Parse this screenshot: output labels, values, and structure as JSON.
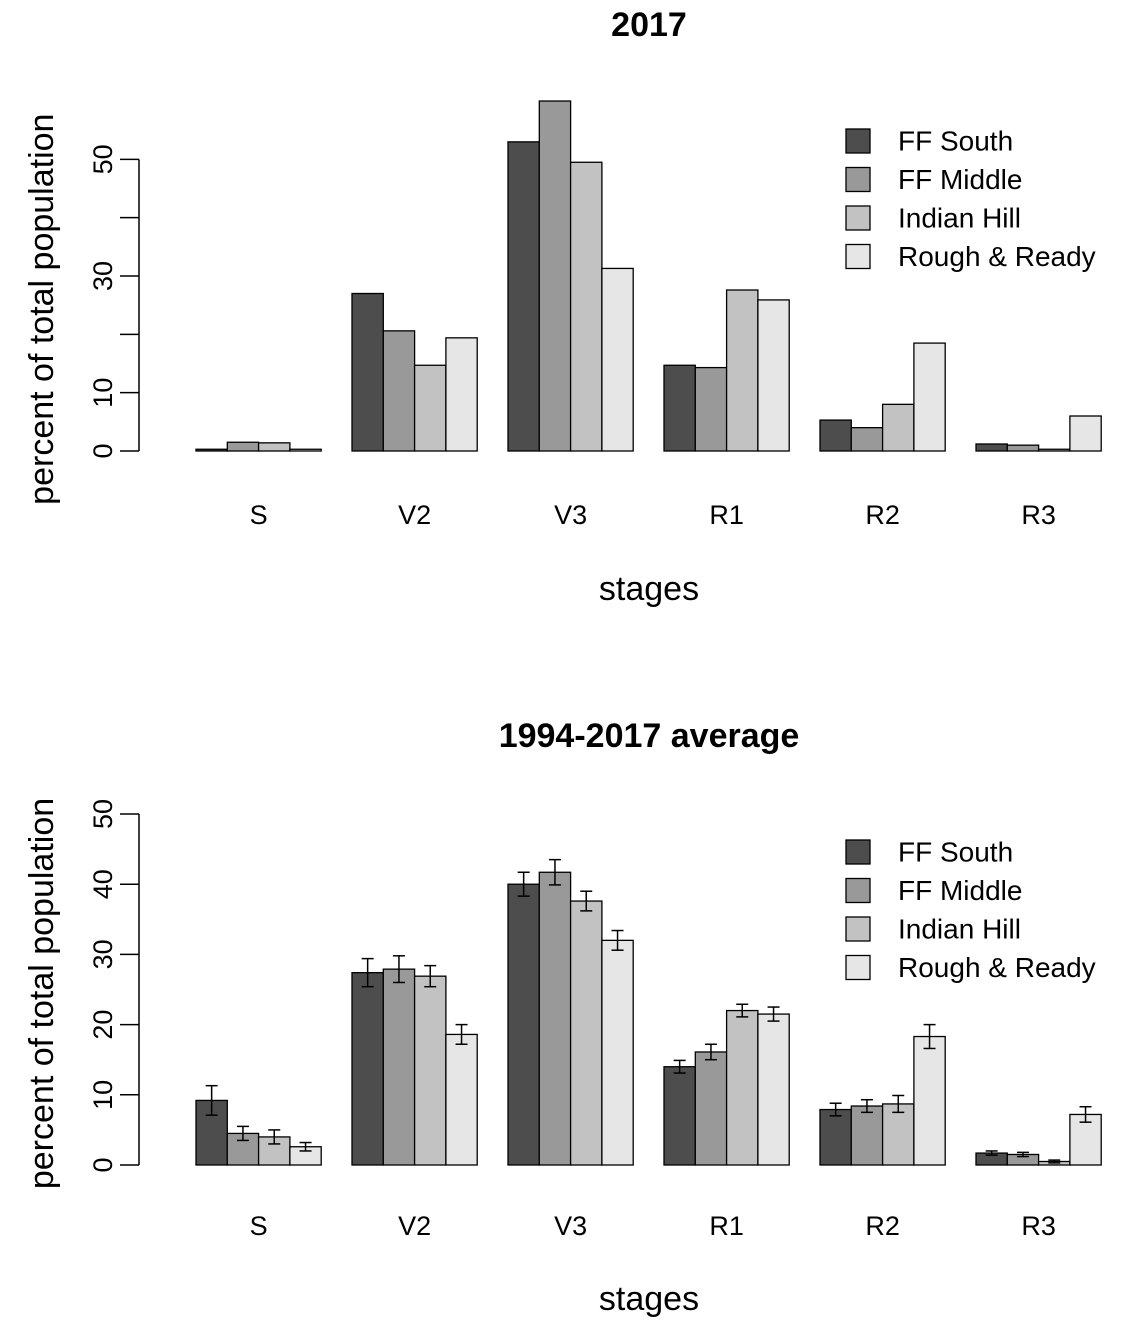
{
  "chart_data": [
    {
      "type": "bar",
      "title": "2017",
      "xlabel": "stages",
      "ylabel": "percent of total population",
      "categories": [
        "S",
        "V2",
        "V3",
        "R1",
        "R2",
        "R3"
      ],
      "yticks": [
        0,
        10,
        30,
        50
      ],
      "ylim": [
        0,
        60
      ],
      "legend_position": "top-right",
      "series": [
        {
          "name": "FF South",
          "color": "#4d4d4d",
          "values": [
            0.3,
            27.0,
            53.0,
            14.7,
            5.3,
            1.2
          ]
        },
        {
          "name": "FF Middle",
          "color": "#999999",
          "values": [
            1.5,
            20.6,
            60.0,
            14.3,
            4.0,
            1.0
          ]
        },
        {
          "name": "Indian Hill",
          "color": "#c2c2c2",
          "values": [
            1.4,
            14.7,
            49.5,
            27.6,
            8.0,
            0.3
          ]
        },
        {
          "name": "Rough & Ready",
          "color": "#e6e6e6",
          "values": [
            0.3,
            19.4,
            31.3,
            25.9,
            18.5,
            6.0
          ]
        }
      ]
    },
    {
      "type": "bar",
      "title": "1994-2017 average",
      "xlabel": "stages",
      "ylabel": "percent of total population",
      "categories": [
        "S",
        "V2",
        "V3",
        "R1",
        "R2",
        "R3"
      ],
      "yticks": [
        0,
        10,
        20,
        30,
        40,
        50
      ],
      "ylim": [
        0,
        50
      ],
      "legend_position": "top-right",
      "error_bars": true,
      "series": [
        {
          "name": "FF South",
          "color": "#4d4d4d",
          "values": [
            9.2,
            27.4,
            40.0,
            14.0,
            7.9,
            1.7
          ],
          "errors": [
            2.1,
            2.0,
            1.7,
            0.9,
            0.9,
            0.3
          ]
        },
        {
          "name": "FF Middle",
          "color": "#999999",
          "values": [
            4.5,
            27.9,
            41.7,
            16.1,
            8.4,
            1.5
          ],
          "errors": [
            1.0,
            1.9,
            1.8,
            1.1,
            0.9,
            0.3
          ]
        },
        {
          "name": "Indian Hill",
          "color": "#c2c2c2",
          "values": [
            4.0,
            26.9,
            37.6,
            22.0,
            8.7,
            0.5
          ],
          "errors": [
            1.0,
            1.5,
            1.4,
            0.9,
            1.2,
            0.2
          ]
        },
        {
          "name": "Rough & Ready",
          "color": "#e6e6e6",
          "values": [
            2.6,
            18.6,
            32.0,
            21.5,
            18.3,
            7.2
          ],
          "errors": [
            0.6,
            1.4,
            1.4,
            1.0,
            1.7,
            1.1
          ]
        }
      ]
    }
  ]
}
